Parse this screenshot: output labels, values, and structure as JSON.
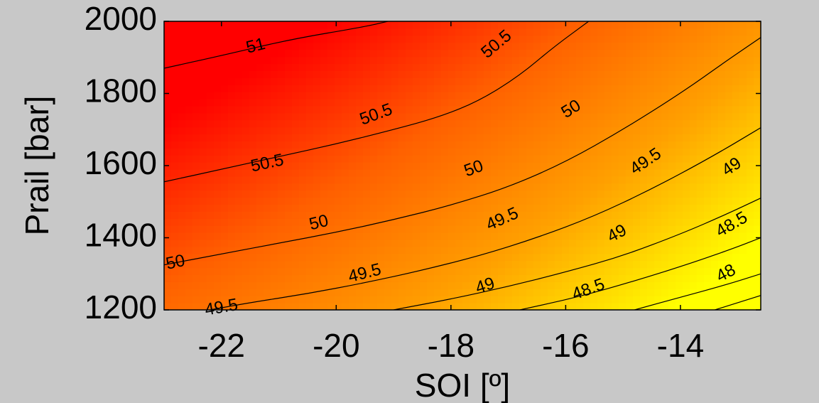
{
  "chart_data": {
    "type": "contour",
    "xlabel": "SOI [º]",
    "ylabel": "Prail [bar]",
    "xlim": [
      -23,
      -12.6
    ],
    "ylim": [
      1200,
      2000
    ],
    "x_ticks": [
      "-22",
      "-20",
      "-18",
      "-16",
      "-14"
    ],
    "x_tick_values": [
      -22,
      -20,
      -18,
      -16,
      -14
    ],
    "y_ticks": [
      "1200",
      "1400",
      "1600",
      "1800",
      "2000"
    ],
    "y_tick_values": [
      1200,
      1400,
      1600,
      1800,
      2000
    ],
    "colormap": [
      "#ff0000",
      "#ff6000",
      "#ffa000",
      "#ffff00"
    ],
    "value_range": [
      47.7,
      51.3
    ],
    "contours": [
      {
        "level": 51,
        "label": "51",
        "points": [
          [
            -23,
            1870
          ],
          [
            -22,
            1905
          ],
          [
            -20.8,
            1950
          ],
          [
            -19.5,
            1985
          ],
          [
            -19.1,
            2000
          ]
        ],
        "label_at": [
          -21.4,
          1930
        ]
      },
      {
        "level": 50.5,
        "label": "50.5",
        "points": [
          [
            -23,
            1555
          ],
          [
            -22,
            1590
          ],
          [
            -21,
            1625
          ],
          [
            -20,
            1660
          ],
          [
            -19,
            1700
          ],
          [
            -18.2,
            1735
          ],
          [
            -17.5,
            1780
          ],
          [
            -16.8,
            1850
          ],
          [
            -16.2,
            1930
          ],
          [
            -15.6,
            2000
          ]
        ],
        "label_at": [
          -20.6,
          1635
        ]
      },
      {
        "level": 50,
        "label": "50",
        "points": [
          [
            -23,
            1325
          ],
          [
            -22,
            1355
          ],
          [
            -21,
            1385
          ],
          [
            -20,
            1415
          ],
          [
            -19,
            1450
          ],
          [
            -18,
            1490
          ],
          [
            -17,
            1540
          ],
          [
            -16,
            1610
          ],
          [
            -15,
            1700
          ],
          [
            -14,
            1800
          ],
          [
            -13.2,
            1890
          ],
          [
            -12.6,
            1955
          ]
        ],
        "label_at": [
          -20.2,
          1425
        ]
      },
      {
        "level": 49.5,
        "label": "49.5",
        "points": [
          [
            -22.2,
            1200
          ],
          [
            -21.5,
            1220
          ],
          [
            -20.5,
            1245
          ],
          [
            -19.5,
            1275
          ],
          [
            -18.5,
            1310
          ],
          [
            -17.5,
            1350
          ],
          [
            -16.5,
            1400
          ],
          [
            -15.5,
            1460
          ],
          [
            -14.5,
            1535
          ],
          [
            -13.5,
            1620
          ],
          [
            -12.6,
            1705
          ]
        ],
        "label_at": [
          -19.3,
          1280
        ]
      },
      {
        "level": 49,
        "label": "49",
        "points": [
          [
            -19,
            1200
          ],
          [
            -18,
            1230
          ],
          [
            -17,
            1265
          ],
          [
            -16,
            1305
          ],
          [
            -15,
            1350
          ],
          [
            -14,
            1410
          ],
          [
            -13.2,
            1465
          ],
          [
            -12.6,
            1510
          ]
        ],
        "label_at": [
          -17.3,
          1255
        ]
      },
      {
        "level": 48.5,
        "label": "48.5",
        "points": [
          [
            -16.8,
            1200
          ],
          [
            -15.8,
            1235
          ],
          [
            -14.8,
            1280
          ],
          [
            -13.8,
            1330
          ],
          [
            -13,
            1375
          ],
          [
            -12.6,
            1400
          ]
        ],
        "label_at": [
          -15.6,
          1245
        ]
      },
      {
        "level": 48,
        "label": "48",
        "points": [
          [
            -14.8,
            1200
          ],
          [
            -14,
            1235
          ],
          [
            -13.2,
            1270
          ],
          [
            -12.6,
            1300
          ]
        ],
        "label_at": [
          -13.6,
          1260
        ]
      },
      {
        "level": 47.75,
        "label": "",
        "points": [
          [
            -13.4,
            1200
          ],
          [
            -13,
            1220
          ],
          [
            -12.6,
            1240
          ]
        ],
        "label_at": null
      }
    ],
    "labels": [
      {
        "text": "51",
        "x": -21.4,
        "y": 1930,
        "angle": -14
      },
      {
        "text": "50.5",
        "x": -17.2,
        "y": 1935,
        "angle": -40
      },
      {
        "text": "50.5",
        "x": -19.3,
        "y": 1740,
        "angle": -20
      },
      {
        "text": "50.5",
        "x": -21.2,
        "y": 1605,
        "angle": -12
      },
      {
        "text": "50",
        "x": -15.9,
        "y": 1755,
        "angle": -32
      },
      {
        "text": "50",
        "x": -17.6,
        "y": 1590,
        "angle": -20
      },
      {
        "text": "50",
        "x": -20.3,
        "y": 1440,
        "angle": -14
      },
      {
        "text": "50",
        "x": -22.8,
        "y": 1330,
        "angle": -12
      },
      {
        "text": "49.5",
        "x": -14.6,
        "y": 1610,
        "angle": -34
      },
      {
        "text": "49.5",
        "x": -17.1,
        "y": 1450,
        "angle": -24
      },
      {
        "text": "49.5",
        "x": -19.5,
        "y": 1300,
        "angle": -14
      },
      {
        "text": "49.5",
        "x": -22,
        "y": 1205,
        "angle": -10
      },
      {
        "text": "49",
        "x": -13.1,
        "y": 1595,
        "angle": -34
      },
      {
        "text": "49",
        "x": -15.1,
        "y": 1410,
        "angle": -28
      },
      {
        "text": "49",
        "x": -17.4,
        "y": 1265,
        "angle": -18
      },
      {
        "text": "48.5",
        "x": -13.1,
        "y": 1435,
        "angle": -30
      },
      {
        "text": "48.5",
        "x": -15.6,
        "y": 1255,
        "angle": -20
      },
      {
        "text": "48",
        "x": -13.2,
        "y": 1300,
        "angle": -28
      }
    ],
    "grid": false
  }
}
